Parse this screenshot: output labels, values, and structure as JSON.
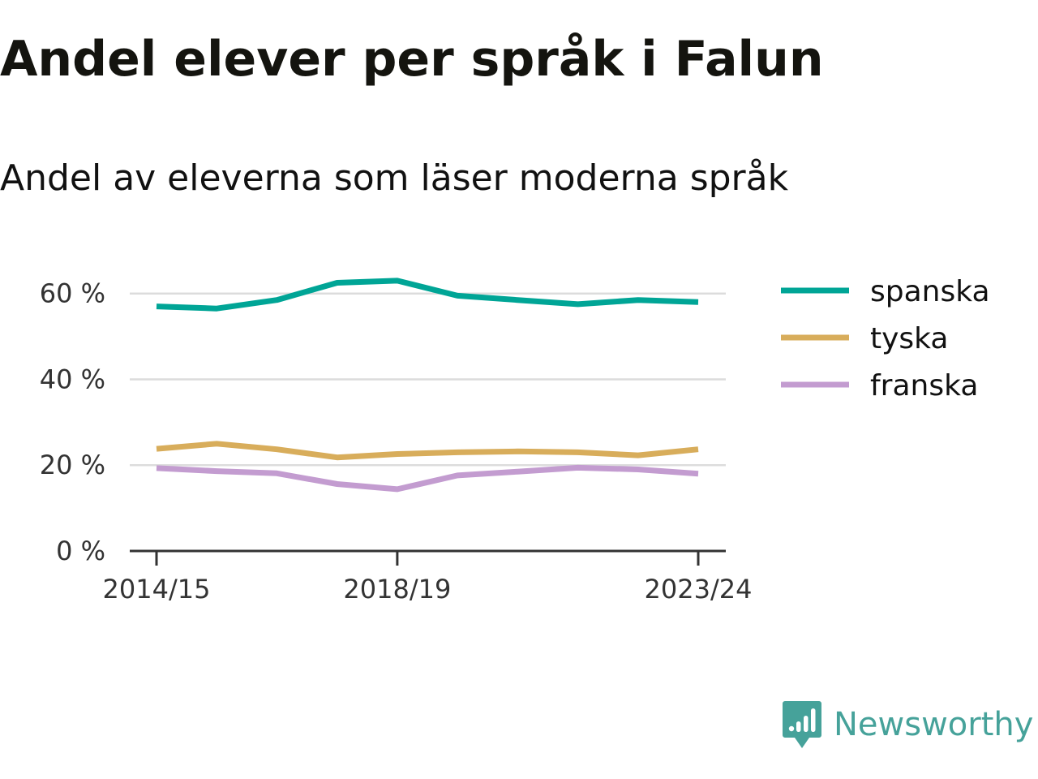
{
  "title": "Andel elever per språk i Falun",
  "subtitle": "Andel av eleverna som läser moderna språk",
  "logo": {
    "text": "Newsworthy",
    "icon": "newsworthy-logo-icon",
    "color": "#46a29a"
  },
  "chart_data": {
    "type": "line",
    "x": [
      "2014/15",
      "2015/16",
      "2016/17",
      "2017/18",
      "2018/19",
      "2019/20",
      "2020/21",
      "2021/22",
      "2022/23",
      "2023/24"
    ],
    "x_tick_labels": [
      "2014/15",
      "2018/19",
      "2023/24"
    ],
    "series": [
      {
        "name": "spanska",
        "color": "#00a596",
        "values": [
          57,
          56.5,
          58.5,
          62.5,
          63,
          59.5,
          58.5,
          57.5,
          58.5,
          58
        ]
      },
      {
        "name": "tyska",
        "color": "#d8ad5b",
        "values": [
          23.8,
          25,
          23.7,
          21.8,
          22.6,
          23,
          23.2,
          23,
          22.3,
          23.7
        ]
      },
      {
        "name": "franska",
        "color": "#c39cd0",
        "values": [
          19.3,
          18.6,
          18.1,
          15.6,
          14.4,
          17.6,
          18.5,
          19.4,
          19,
          18
        ]
      }
    ],
    "y_ticks": [
      0,
      20,
      40,
      60
    ],
    "y_tick_labels": [
      "0 %",
      "20 %",
      "40 %",
      "60 %"
    ],
    "ylim": [
      0,
      66
    ],
    "grid": true,
    "legend": "right",
    "xlabel": "",
    "ylabel": ""
  }
}
